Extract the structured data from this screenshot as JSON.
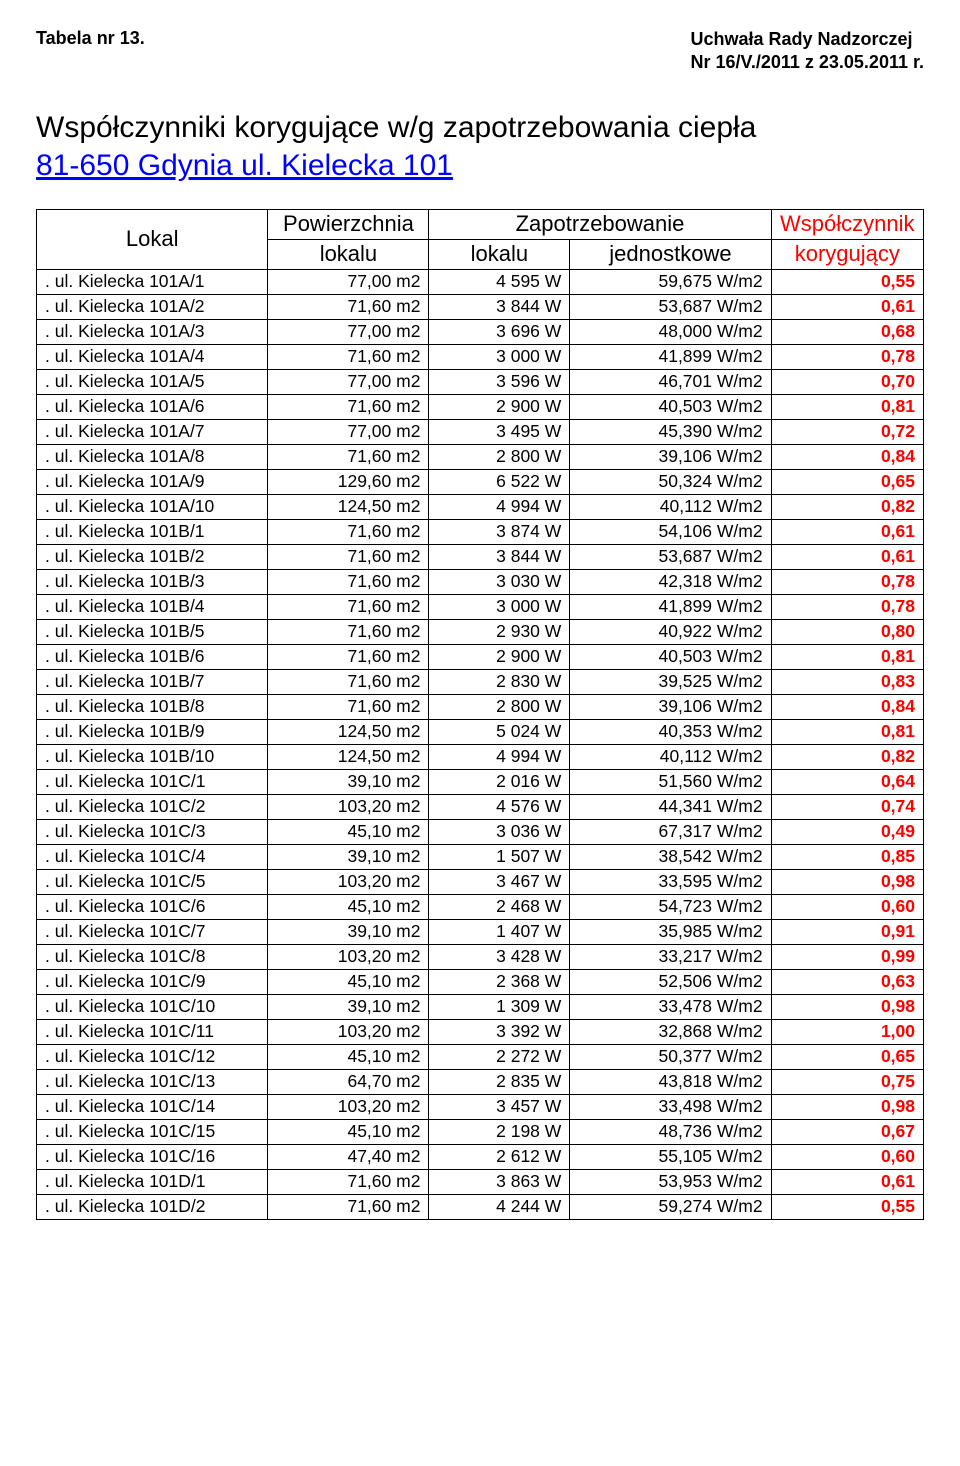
{
  "header": {
    "table_label": "Tabela nr 13.",
    "right_line1": "Uchwała Rady Nadzorczej",
    "right_line2": "Nr 16/V./2011 z 23.05.2011 r."
  },
  "title": {
    "main": "Współczynniki korygujące w/g zapotrzebowania ciepła",
    "sub": "81-650 Gdynia ul. Kielecka 101"
  },
  "columns": {
    "c1_top": "Lokal",
    "c2_top": "Powierzchnia",
    "c2_bot": "lokalu",
    "c3_top": "Zapotrzebowanie",
    "c3_bot": "lokalu",
    "c4_bot": "jednostkowe",
    "c5_top": "Współczynnik",
    "c5_bot": "korygujący"
  },
  "rows": [
    {
      "lokal": ". ul. Kielecka 101A/1",
      "area": "77,00 m2",
      "demand": "4 595 W",
      "unit": "59,675 W/m2",
      "coef": "0,55"
    },
    {
      "lokal": ". ul. Kielecka 101A/2",
      "area": "71,60 m2",
      "demand": "3 844 W",
      "unit": "53,687 W/m2",
      "coef": "0,61"
    },
    {
      "lokal": ". ul. Kielecka 101A/3",
      "area": "77,00 m2",
      "demand": "3 696 W",
      "unit": "48,000 W/m2",
      "coef": "0,68"
    },
    {
      "lokal": ". ul. Kielecka 101A/4",
      "area": "71,60 m2",
      "demand": "3 000 W",
      "unit": "41,899 W/m2",
      "coef": "0,78"
    },
    {
      "lokal": ". ul. Kielecka 101A/5",
      "area": "77,00 m2",
      "demand": "3 596 W",
      "unit": "46,701 W/m2",
      "coef": "0,70"
    },
    {
      "lokal": ". ul. Kielecka 101A/6",
      "area": "71,60 m2",
      "demand": "2 900 W",
      "unit": "40,503 W/m2",
      "coef": "0,81"
    },
    {
      "lokal": ". ul. Kielecka 101A/7",
      "area": "77,00 m2",
      "demand": "3 495 W",
      "unit": "45,390 W/m2",
      "coef": "0,72"
    },
    {
      "lokal": ". ul. Kielecka 101A/8",
      "area": "71,60 m2",
      "demand": "2 800 W",
      "unit": "39,106 W/m2",
      "coef": "0,84"
    },
    {
      "lokal": ". ul. Kielecka 101A/9",
      "area": "129,60 m2",
      "demand": "6 522 W",
      "unit": "50,324 W/m2",
      "coef": "0,65"
    },
    {
      "lokal": ". ul. Kielecka 101A/10",
      "area": "124,50 m2",
      "demand": "4 994 W",
      "unit": "40,112 W/m2",
      "coef": "0,82"
    },
    {
      "lokal": ". ul. Kielecka 101B/1",
      "area": "71,60 m2",
      "demand": "3 874 W",
      "unit": "54,106 W/m2",
      "coef": "0,61"
    },
    {
      "lokal": ". ul. Kielecka 101B/2",
      "area": "71,60 m2",
      "demand": "3 844 W",
      "unit": "53,687 W/m2",
      "coef": "0,61"
    },
    {
      "lokal": ". ul. Kielecka 101B/3",
      "area": "71,60 m2",
      "demand": "3 030 W",
      "unit": "42,318 W/m2",
      "coef": "0,78"
    },
    {
      "lokal": ". ul. Kielecka 101B/4",
      "area": "71,60 m2",
      "demand": "3 000 W",
      "unit": "41,899 W/m2",
      "coef": "0,78"
    },
    {
      "lokal": ". ul. Kielecka 101B/5",
      "area": "71,60 m2",
      "demand": "2 930 W",
      "unit": "40,922 W/m2",
      "coef": "0,80"
    },
    {
      "lokal": ". ul. Kielecka 101B/6",
      "area": "71,60 m2",
      "demand": "2 900 W",
      "unit": "40,503 W/m2",
      "coef": "0,81"
    },
    {
      "lokal": ". ul. Kielecka 101B/7",
      "area": "71,60 m2",
      "demand": "2 830 W",
      "unit": "39,525 W/m2",
      "coef": "0,83"
    },
    {
      "lokal": ". ul. Kielecka 101B/8",
      "area": "71,60 m2",
      "demand": "2 800 W",
      "unit": "39,106 W/m2",
      "coef": "0,84"
    },
    {
      "lokal": ". ul. Kielecka 101B/9",
      "area": "124,50 m2",
      "demand": "5 024 W",
      "unit": "40,353 W/m2",
      "coef": "0,81"
    },
    {
      "lokal": ". ul. Kielecka 101B/10",
      "area": "124,50 m2",
      "demand": "4 994 W",
      "unit": "40,112 W/m2",
      "coef": "0,82"
    },
    {
      "lokal": ". ul. Kielecka 101C/1",
      "area": "39,10 m2",
      "demand": "2 016 W",
      "unit": "51,560 W/m2",
      "coef": "0,64"
    },
    {
      "lokal": ". ul. Kielecka 101C/2",
      "area": "103,20 m2",
      "demand": "4 576 W",
      "unit": "44,341 W/m2",
      "coef": "0,74"
    },
    {
      "lokal": ". ul. Kielecka 101C/3",
      "area": "45,10 m2",
      "demand": "3 036 W",
      "unit": "67,317 W/m2",
      "coef": "0,49"
    },
    {
      "lokal": ". ul. Kielecka 101C/4",
      "area": "39,10 m2",
      "demand": "1 507 W",
      "unit": "38,542 W/m2",
      "coef": "0,85"
    },
    {
      "lokal": ". ul. Kielecka 101C/5",
      "area": "103,20 m2",
      "demand": "3 467 W",
      "unit": "33,595 W/m2",
      "coef": "0,98"
    },
    {
      "lokal": ". ul. Kielecka 101C/6",
      "area": "45,10 m2",
      "demand": "2 468 W",
      "unit": "54,723 W/m2",
      "coef": "0,60"
    },
    {
      "lokal": ". ul. Kielecka 101C/7",
      "area": "39,10 m2",
      "demand": "1 407 W",
      "unit": "35,985 W/m2",
      "coef": "0,91"
    },
    {
      "lokal": ". ul. Kielecka 101C/8",
      "area": "103,20 m2",
      "demand": "3 428 W",
      "unit": "33,217 W/m2",
      "coef": "0,99"
    },
    {
      "lokal": ". ul. Kielecka 101C/9",
      "area": "45,10 m2",
      "demand": "2 368 W",
      "unit": "52,506 W/m2",
      "coef": "0,63"
    },
    {
      "lokal": ". ul. Kielecka 101C/10",
      "area": "39,10 m2",
      "demand": "1 309 W",
      "unit": "33,478 W/m2",
      "coef": "0,98"
    },
    {
      "lokal": ". ul. Kielecka 101C/11",
      "area": "103,20 m2",
      "demand": "3 392 W",
      "unit": "32,868 W/m2",
      "coef": "1,00"
    },
    {
      "lokal": ". ul. Kielecka 101C/12",
      "area": "45,10 m2",
      "demand": "2 272 W",
      "unit": "50,377 W/m2",
      "coef": "0,65"
    },
    {
      "lokal": ". ul. Kielecka 101C/13",
      "area": "64,70 m2",
      "demand": "2 835 W",
      "unit": "43,818 W/m2",
      "coef": "0,75"
    },
    {
      "lokal": ". ul. Kielecka 101C/14",
      "area": "103,20 m2",
      "demand": "3 457 W",
      "unit": "33,498 W/m2",
      "coef": "0,98"
    },
    {
      "lokal": ". ul. Kielecka 101C/15",
      "area": "45,10 m2",
      "demand": "2 198 W",
      "unit": "48,736 W/m2",
      "coef": "0,67"
    },
    {
      "lokal": ". ul. Kielecka 101C/16",
      "area": "47,40 m2",
      "demand": "2 612 W",
      "unit": "55,105 W/m2",
      "coef": "0,60"
    },
    {
      "lokal": ". ul. Kielecka 101D/1",
      "area": "71,60 m2",
      "demand": "3 863 W",
      "unit": "53,953 W/m2",
      "coef": "0,61"
    },
    {
      "lokal": ". ul. Kielecka 101D/2",
      "area": "71,60 m2",
      "demand": "4 244 W",
      "unit": "59,274 W/m2",
      "coef": "0,55"
    }
  ],
  "style": {
    "coef_color": "#ff0000",
    "link_color": "#0000ff",
    "border_color": "#000000",
    "background": "#ffffff"
  }
}
